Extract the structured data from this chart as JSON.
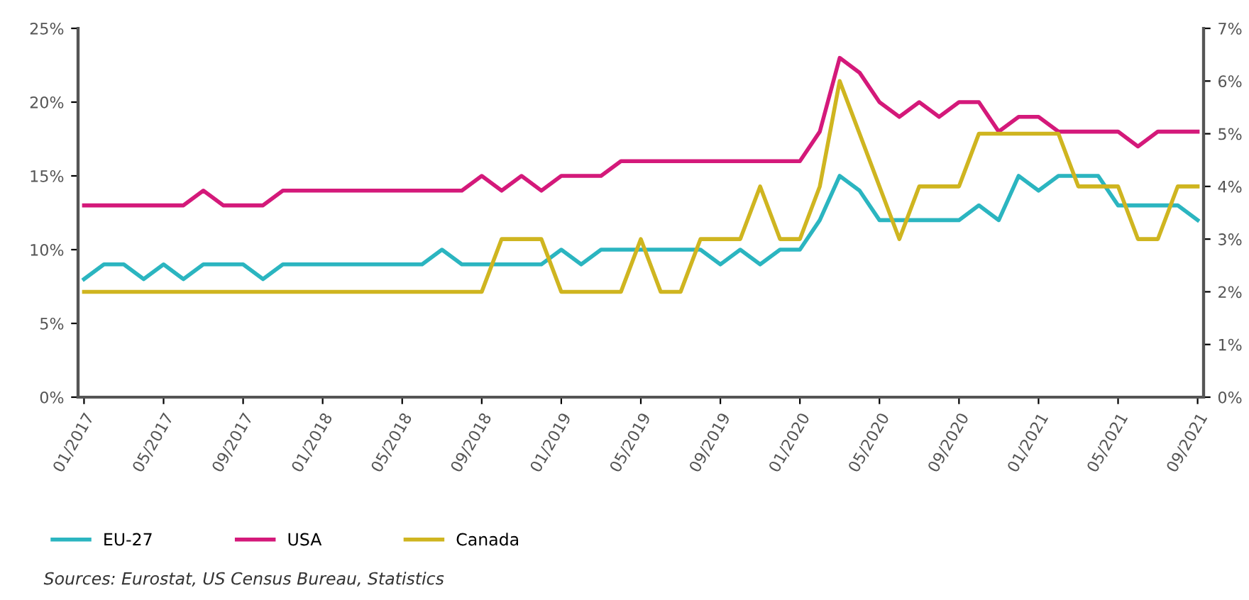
{
  "chart_data": {
    "type": "line",
    "categories": [
      "01/2017",
      null,
      null,
      null,
      "05/2017",
      null,
      null,
      null,
      "09/2017",
      null,
      null,
      null,
      "01/2018",
      null,
      null,
      null,
      "05/2018",
      null,
      null,
      null,
      "09/2018",
      null,
      null,
      null,
      "01/2019",
      null,
      null,
      null,
      "05/2019",
      null,
      null,
      null,
      "09/2019",
      null,
      null,
      null,
      "01/2020",
      null,
      null,
      null,
      "05/2020",
      null,
      null,
      null,
      "09/2020",
      null,
      null,
      null,
      "01/2021",
      null,
      null,
      null,
      "05/2021",
      null,
      null,
      null,
      "09/2021"
    ],
    "series": [
      {
        "name": "EU-27",
        "color": "#2bb5c0",
        "values": [
          8,
          9,
          9,
          8,
          9,
          8,
          9,
          9,
          9,
          8,
          9,
          9,
          9,
          9,
          9,
          9,
          9,
          9,
          10,
          9,
          9,
          9,
          9,
          9,
          10,
          9,
          10,
          10,
          10,
          10,
          10,
          10,
          9,
          10,
          9,
          10,
          10,
          12,
          15,
          14,
          12,
          12,
          12,
          12,
          12,
          13,
          12,
          15,
          14,
          15,
          15,
          15,
          13,
          13,
          13,
          13,
          12
        ]
      },
      {
        "name": "USA",
        "color": "#d4197a",
        "values": [
          13,
          13,
          13,
          13,
          13,
          13,
          14,
          13,
          13,
          13,
          14,
          14,
          14,
          14,
          14,
          14,
          14,
          14,
          14,
          14,
          15,
          14,
          15,
          14,
          15,
          15,
          15,
          16,
          16,
          16,
          16,
          16,
          16,
          16,
          16,
          16,
          16,
          18,
          23,
          22,
          20,
          19,
          20,
          19,
          20,
          20,
          18,
          19,
          19,
          18,
          18,
          18,
          18,
          17,
          18,
          18,
          18
        ]
      },
      {
        "name": "Canada",
        "color": "#cfb520",
        "axis": "y2",
        "values": [
          2,
          2,
          2,
          2,
          2,
          2,
          2,
          2,
          2,
          2,
          2,
          2,
          2,
          2,
          2,
          2,
          2,
          2,
          2,
          2,
          2,
          3,
          3,
          3,
          2,
          2,
          2,
          2,
          3,
          2,
          2,
          3,
          3,
          3,
          4,
          3,
          3,
          4,
          6,
          5,
          4,
          3,
          4,
          4,
          4,
          5,
          5,
          5,
          5,
          5,
          4,
          4,
          4,
          3,
          3,
          4,
          4
        ]
      }
    ],
    "ylim": [
      0,
      25
    ],
    "yticks": [
      {
        "value": 0,
        "label": "0%"
      },
      {
        "value": 5,
        "label": "5%"
      },
      {
        "value": 10,
        "label": "10%"
      },
      {
        "value": 15,
        "label": "15%"
      },
      {
        "value": 20,
        "label": "20%"
      },
      {
        "value": 25,
        "label": "25%"
      }
    ],
    "y2lim": [
      0,
      7
    ],
    "y2ticks": [
      {
        "value": 0,
        "label": "0%"
      },
      {
        "value": 1,
        "label": "1%"
      },
      {
        "value": 2,
        "label": "2%"
      },
      {
        "value": 3,
        "label": "3%"
      },
      {
        "value": 4,
        "label": "4%"
      },
      {
        "value": 5,
        "label": "5%"
      },
      {
        "value": 6,
        "label": "6%"
      },
      {
        "value": 7,
        "label": "7%"
      }
    ],
    "grid": false,
    "legend": "bottom",
    "annotations": [
      "Sources: Eurostat, US Census Bureau, Statistics"
    ]
  }
}
